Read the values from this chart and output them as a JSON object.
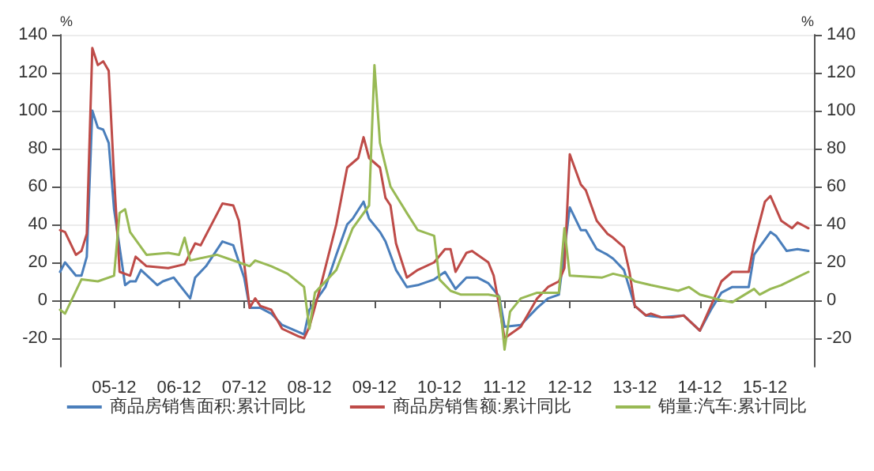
{
  "chart_data": {
    "type": "line",
    "ylabel": "%",
    "y2label": "%",
    "xlim": [
      "2005-02",
      "2016-09"
    ],
    "xticks": [
      {
        "value": "2005-12",
        "label": "05-12"
      },
      {
        "value": "2006-12",
        "label": "06-12"
      },
      {
        "value": "2007-12",
        "label": "07-12"
      },
      {
        "value": "2008-12",
        "label": "08-12"
      },
      {
        "value": "2009-12",
        "label": "09-12"
      },
      {
        "value": "2010-12",
        "label": "10-12"
      },
      {
        "value": "2011-12",
        "label": "11-12"
      },
      {
        "value": "2012-12",
        "label": "12-12"
      },
      {
        "value": "2013-12",
        "label": "13-12"
      },
      {
        "value": "2014-12",
        "label": "14-12"
      },
      {
        "value": "2015-12",
        "label": "15-12"
      }
    ],
    "ylim": [
      -35,
      140
    ],
    "yticks": [
      -20,
      0,
      20,
      40,
      60,
      80,
      100,
      120,
      140
    ],
    "y2lim": [
      -35,
      140
    ],
    "y2ticks": [
      -20,
      0,
      20,
      40,
      60,
      80,
      100,
      120,
      140
    ],
    "grid": "y",
    "legend": "bottom",
    "marker": "none",
    "line_style": "solid",
    "series": [
      {
        "name": "商品房销售面积:累计同比",
        "color": "#4a7ebb",
        "x": [
          "2005-02",
          "2005-03",
          "2005-05",
          "2005-06",
          "2005-07",
          "2005-08",
          "2005-09",
          "2005-10",
          "2005-11",
          "2005-12",
          "2006-02",
          "2006-03",
          "2006-04",
          "2006-05",
          "2006-08",
          "2006-09",
          "2006-11",
          "2007-02",
          "2007-03",
          "2007-05",
          "2007-08",
          "2007-10",
          "2007-12",
          "2008-01",
          "2008-03",
          "2008-05",
          "2008-07",
          "2008-11",
          "2008-12",
          "2009-03",
          "2009-05",
          "2009-07",
          "2009-08",
          "2009-10",
          "2009-11",
          "2010-01",
          "2010-02",
          "2010-04",
          "2010-06",
          "2010-08",
          "2010-11",
          "2011-01",
          "2011-03",
          "2011-05",
          "2011-07",
          "2011-09",
          "2011-11",
          "2011-12",
          "2012-03",
          "2012-06",
          "2012-08",
          "2012-10",
          "2012-12",
          "2013-02",
          "2013-03",
          "2013-05",
          "2013-07",
          "2013-08",
          "2013-10",
          "2013-12",
          "2014-02",
          "2014-05",
          "2014-09",
          "2014-12",
          "2015-02",
          "2015-04",
          "2015-06",
          "2015-09",
          "2015-10",
          "2016-01",
          "2016-02",
          "2016-04",
          "2016-06",
          "2016-08"
        ],
        "values": [
          15,
          20,
          13,
          13,
          23,
          100,
          91,
          90,
          83,
          48,
          8,
          10,
          10,
          16,
          8,
          10,
          12,
          1,
          12,
          18,
          31,
          29,
          12,
          -4,
          -4,
          -7,
          -13,
          -18,
          -5,
          7,
          24,
          40,
          43,
          52,
          43,
          36,
          31,
          16,
          7,
          8,
          11,
          15,
          6,
          12,
          12,
          9,
          2,
          -14,
          -13,
          -4,
          1,
          3,
          49,
          37,
          37,
          27,
          24,
          22,
          16,
          -3,
          -8,
          -9,
          -8,
          -16,
          -5,
          4,
          7,
          7,
          24,
          36,
          34,
          26,
          27,
          26
        ]
      },
      {
        "name": "商品房销售额:累计同比",
        "color": "#be4b48",
        "x": [
          "2005-02",
          "2005-03",
          "2005-05",
          "2005-06",
          "2005-07",
          "2005-08",
          "2005-09",
          "2005-10",
          "2005-11",
          "2005-12",
          "2006-01",
          "2006-03",
          "2006-04",
          "2006-06",
          "2006-10",
          "2007-01",
          "2007-03",
          "2007-04",
          "2007-08",
          "2007-10",
          "2007-11",
          "2008-01",
          "2008-02",
          "2008-03",
          "2008-05",
          "2008-06",
          "2008-07",
          "2008-10",
          "2008-11",
          "2008-12",
          "2009-02",
          "2009-05",
          "2009-07",
          "2009-09",
          "2009-10",
          "2009-11",
          "2010-01",
          "2010-02",
          "2010-03",
          "2010-04",
          "2010-06",
          "2010-08",
          "2010-11",
          "2011-01",
          "2011-02",
          "2011-03",
          "2011-05",
          "2011-06",
          "2011-09",
          "2011-10",
          "2011-11",
          "2011-12",
          "2012-03",
          "2012-06",
          "2012-08",
          "2012-10",
          "2012-11",
          "2012-12",
          "2013-02",
          "2013-03",
          "2013-05",
          "2013-07",
          "2013-08",
          "2013-10",
          "2013-11",
          "2013-12",
          "2014-02",
          "2014-03",
          "2014-05",
          "2014-07",
          "2014-09",
          "2014-12",
          "2015-02",
          "2015-04",
          "2015-06",
          "2015-08",
          "2015-09",
          "2015-10",
          "2015-12",
          "2016-01",
          "2016-03",
          "2016-05",
          "2016-06",
          "2016-08"
        ],
        "values": [
          37,
          36,
          24,
          26,
          35,
          133,
          124,
          126,
          121,
          65,
          15,
          13,
          23,
          18,
          17,
          19,
          30,
          29,
          51,
          50,
          42,
          -4,
          1,
          -3,
          -5,
          -10,
          -15,
          -19,
          -20,
          -14,
          7,
          40,
          70,
          75,
          86,
          75,
          70,
          54,
          50,
          30,
          12,
          16,
          20,
          27,
          27,
          15,
          25,
          26,
          20,
          13,
          -3,
          -20,
          -14,
          1,
          7,
          10,
          17,
          77,
          61,
          58,
          42,
          35,
          33,
          28,
          15,
          -3,
          -8,
          -7,
          -9,
          -9,
          -8,
          -16,
          -3,
          10,
          15,
          15,
          15,
          30,
          52,
          55,
          42,
          38,
          41,
          38
        ]
      },
      {
        "name": "销量:汽车:累计同比",
        "color": "#98b954",
        "x": [
          "2005-02",
          "2005-03",
          "2005-06",
          "2005-09",
          "2005-12",
          "2006-01",
          "2006-02",
          "2006-03",
          "2006-06",
          "2006-10",
          "2006-12",
          "2007-01",
          "2007-02",
          "2007-07",
          "2007-11",
          "2008-01",
          "2008-02",
          "2008-05",
          "2008-08",
          "2008-11",
          "2008-12",
          "2009-01",
          "2009-05",
          "2009-08",
          "2009-11",
          "2009-12",
          "2010-01",
          "2010-03",
          "2010-06",
          "2010-08",
          "2010-11",
          "2010-12",
          "2011-02",
          "2011-04",
          "2011-09",
          "2011-11",
          "2011-12",
          "2012-01",
          "2012-03",
          "2012-06",
          "2012-10",
          "2012-11",
          "2012-12",
          "2013-06",
          "2013-08",
          "2013-11",
          "2013-12",
          "2014-03",
          "2014-08",
          "2014-10",
          "2014-12",
          "2015-04",
          "2015-06",
          "2015-10",
          "2015-11",
          "2016-01",
          "2016-03",
          "2016-08"
        ],
        "values": [
          -5,
          -7,
          11,
          10,
          13,
          46,
          48,
          36,
          24,
          25,
          24,
          33,
          21,
          24,
          20,
          18,
          21,
          18,
          14,
          7,
          -15,
          4,
          16,
          38,
          50,
          124,
          83,
          60,
          46,
          37,
          34,
          11,
          5,
          3,
          3,
          2,
          -26,
          -6,
          1,
          4,
          4,
          38,
          13,
          12,
          14,
          12,
          10,
          8,
          5,
          7,
          3,
          0,
          -1,
          6,
          3,
          6,
          8,
          15
        ]
      }
    ]
  }
}
